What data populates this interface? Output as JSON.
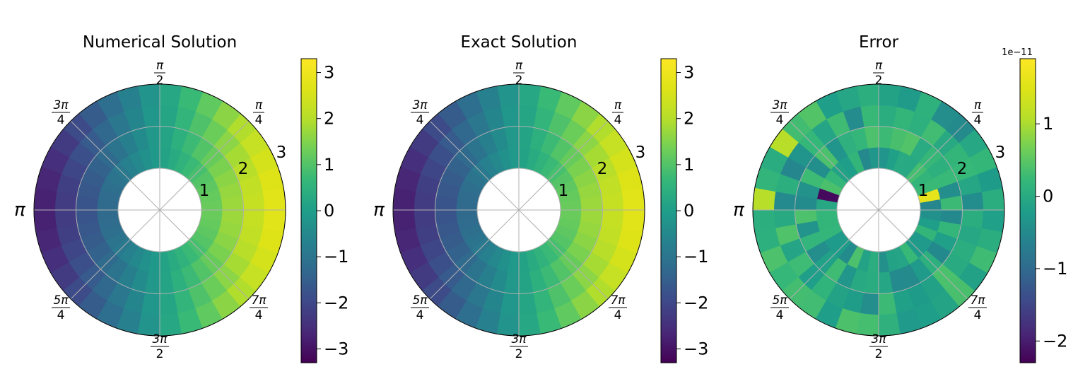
{
  "figure": {
    "colormap": "viridis",
    "background": "#ffffff",
    "grid_color": "#b0b0b0"
  },
  "chart_data": [
    {
      "type": "heatmap",
      "projection": "polar",
      "title": "Numerical Solution",
      "field": "numerical",
      "r_range": [
        1,
        3
      ],
      "r_ticks": [
        {
          "value": 1,
          "label": "1"
        },
        {
          "value": 2,
          "label": "2"
        },
        {
          "value": 3,
          "label": "3"
        }
      ],
      "theta_ticks": [
        "0",
        "π/4",
        "π/2",
        "3π/4",
        "π",
        "5π/4",
        "3π/2",
        "7π/4"
      ],
      "theta_tick_labels": {
        "pi": "π",
        "pi_over_2": [
          "π",
          "2"
        ],
        "pi_over_4": [
          "π",
          "4"
        ],
        "three_pi_over_4": [
          "3π",
          "4"
        ],
        "five_pi_over_4": [
          "5π",
          "4"
        ],
        "three_pi_over_2": [
          "3π",
          "2"
        ],
        "seven_pi_over_4": [
          "7π",
          "4"
        ]
      },
      "grid": true,
      "value_model": "value = r * cos(theta)",
      "colorbar": {
        "range": [
          -3.3,
          3.3
        ],
        "ticks": [
          {
            "value": 3,
            "label": "3"
          },
          {
            "value": 2,
            "label": "2"
          },
          {
            "value": 1,
            "label": "1"
          },
          {
            "value": 0,
            "label": "0"
          },
          {
            "value": -1,
            "label": "−1"
          },
          {
            "value": -2,
            "label": "−2"
          },
          {
            "value": -3,
            "label": "−3"
          }
        ],
        "offset_label": ""
      }
    },
    {
      "type": "heatmap",
      "projection": "polar",
      "title": "Exact Solution",
      "field": "exact",
      "r_range": [
        1,
        3
      ],
      "r_ticks": [
        {
          "value": 1,
          "label": "1"
        },
        {
          "value": 2,
          "label": "2"
        },
        {
          "value": 3,
          "label": "3"
        }
      ],
      "theta_ticks": [
        "0",
        "π/4",
        "π/2",
        "3π/4",
        "π",
        "5π/4",
        "3π/2",
        "7π/4"
      ],
      "theta_tick_labels": {
        "pi": "π",
        "pi_over_2": [
          "π",
          "2"
        ],
        "pi_over_4": [
          "π",
          "4"
        ],
        "three_pi_over_4": [
          "3π",
          "4"
        ],
        "five_pi_over_4": [
          "5π",
          "4"
        ],
        "three_pi_over_2": [
          "3π",
          "2"
        ],
        "seven_pi_over_4": [
          "7π",
          "4"
        ]
      },
      "grid": true,
      "value_model": "value = r * cos(theta)",
      "colorbar": {
        "range": [
          -3.3,
          3.3
        ],
        "ticks": [
          {
            "value": 3,
            "label": "3"
          },
          {
            "value": 2,
            "label": "2"
          },
          {
            "value": 1,
            "label": "1"
          },
          {
            "value": 0,
            "label": "0"
          },
          {
            "value": -1,
            "label": "−1"
          },
          {
            "value": -2,
            "label": "−2"
          },
          {
            "value": -3,
            "label": "−3"
          }
        ],
        "offset_label": ""
      }
    },
    {
      "type": "heatmap",
      "projection": "polar",
      "title": "Error",
      "field": "error",
      "r_range": [
        1,
        3
      ],
      "r_ticks": [
        {
          "value": 1,
          "label": "1"
        },
        {
          "value": 2,
          "label": "2"
        },
        {
          "value": 3,
          "label": "3"
        }
      ],
      "theta_ticks": [
        "0",
        "π/4",
        "π/2",
        "3π/4",
        "π",
        "5π/4",
        "3π/2",
        "7π/4"
      ],
      "theta_tick_labels": {
        "pi": "π",
        "pi_over_2": [
          "π",
          "2"
        ],
        "pi_over_4": [
          "π",
          "4"
        ],
        "three_pi_over_4": [
          "3π",
          "4"
        ],
        "five_pi_over_4": [
          "5π",
          "4"
        ],
        "three_pi_over_2": [
          "3π",
          "2"
        ],
        "seven_pi_over_4": [
          "7π",
          "4"
        ]
      },
      "grid": true,
      "value_model": "small noise around 0 (scale 1e-11)",
      "colorbar": {
        "range": [
          -2.3,
          1.9
        ],
        "ticks": [
          {
            "value": 1,
            "label": "1"
          },
          {
            "value": 0,
            "label": "0"
          },
          {
            "value": -1,
            "label": "−1"
          },
          {
            "value": -2,
            "label": "−2"
          }
        ],
        "offset_label": "1e−11"
      }
    }
  ]
}
